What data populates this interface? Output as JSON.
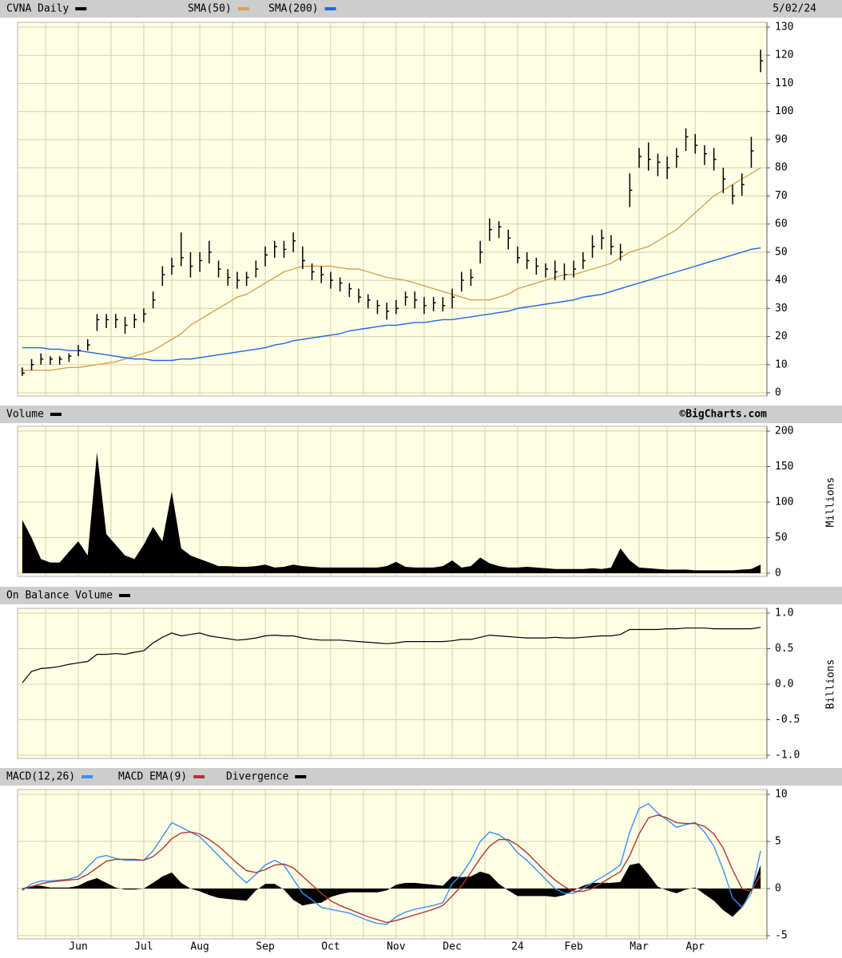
{
  "chart_data": [
    {
      "type": "ohlc",
      "name": "CVNA Daily",
      "color": "#000000",
      "date_label": "5/02/24",
      "high": [
        9,
        12,
        14,
        13,
        13,
        14,
        17,
        19,
        28,
        28,
        28,
        27,
        28,
        30,
        36,
        45,
        48,
        57,
        50,
        50,
        54,
        47,
        44,
        43,
        43,
        47,
        52,
        54,
        54,
        57,
        52,
        46,
        45,
        43,
        41,
        39,
        37,
        35,
        33,
        32,
        33,
        36,
        36,
        34,
        34,
        34,
        37,
        43,
        44,
        54,
        62,
        61,
        58,
        52,
        50,
        48,
        46,
        47,
        46,
        47,
        50,
        56,
        58,
        56,
        53,
        78,
        87,
        89,
        85,
        84,
        87,
        94,
        92,
        88,
        87,
        80,
        74,
        78,
        91,
        122
      ],
      "low": [
        6,
        8,
        10,
        10,
        10,
        11,
        13,
        15,
        22,
        23,
        23,
        21,
        23,
        25,
        30,
        38,
        42,
        45,
        41,
        43,
        46,
        41,
        38,
        37,
        38,
        41,
        45,
        48,
        48,
        50,
        44,
        40,
        39,
        37,
        36,
        34,
        32,
        30,
        28,
        26,
        28,
        31,
        30,
        28,
        29,
        29,
        30,
        36,
        38,
        46,
        54,
        55,
        51,
        46,
        44,
        42,
        41,
        40,
        40,
        41,
        44,
        48,
        51,
        49,
        47,
        66,
        80,
        79,
        77,
        76,
        80,
        86,
        85,
        81,
        79,
        71,
        67,
        70,
        80,
        114
      ],
      "close": [
        7,
        10,
        12,
        12,
        12,
        13,
        15,
        17,
        26,
        26,
        26,
        24,
        26,
        28,
        33,
        42,
        45,
        48,
        45,
        47,
        50,
        44,
        41,
        40,
        41,
        44,
        49,
        52,
        51,
        54,
        47,
        43,
        42,
        40,
        39,
        37,
        34,
        33,
        31,
        29,
        30,
        34,
        33,
        31,
        32,
        31,
        34,
        40,
        41,
        50,
        58,
        59,
        55,
        48,
        47,
        45,
        44,
        43,
        42,
        44,
        47,
        52,
        55,
        52,
        50,
        72,
        84,
        83,
        82,
        80,
        84,
        91,
        88,
        85,
        83,
        76,
        70,
        74,
        86,
        118
      ],
      "series": [
        {
          "name": "SMA(50)",
          "color": "#d9a150",
          "values": [
            8,
            8,
            8,
            8,
            8.5,
            9,
            9,
            9.5,
            10,
            10.5,
            11,
            12,
            13,
            14,
            15,
            17,
            19,
            21,
            24,
            26,
            28,
            30,
            32,
            34,
            35,
            37,
            39,
            41,
            43,
            44,
            45,
            45,
            45,
            45,
            44.5,
            44,
            44,
            43,
            42,
            41,
            40.5,
            40,
            39,
            38,
            37,
            36,
            35,
            34,
            33,
            33,
            33,
            34,
            35,
            37,
            38,
            39,
            40,
            41,
            42,
            42,
            43,
            44,
            45,
            46,
            48,
            50,
            51,
            52,
            54,
            56,
            58,
            61,
            64,
            67,
            70,
            72,
            74,
            76,
            78,
            80
          ]
        },
        {
          "name": "SMA(200)",
          "color": "#1e66e0",
          "values": [
            16,
            16,
            16,
            15.5,
            15.5,
            15,
            15,
            14.5,
            14,
            13.5,
            13,
            12.5,
            12,
            12,
            11.5,
            11.5,
            11.5,
            12,
            12,
            12.5,
            13,
            13.5,
            14,
            14.5,
            15,
            15.5,
            16,
            17,
            17.5,
            18.5,
            19,
            19.5,
            20,
            20.5,
            21,
            22,
            22.5,
            23,
            23.5,
            24,
            24,
            24.5,
            25,
            25,
            25.5,
            26,
            26,
            26.5,
            27,
            27.5,
            28,
            28.5,
            29,
            30,
            30.5,
            31,
            31.5,
            32,
            32.5,
            33,
            34,
            34.5,
            35,
            36,
            37,
            38,
            39,
            40,
            41,
            42,
            43,
            44,
            45,
            46,
            47,
            48,
            49,
            50,
            51,
            51.5
          ]
        }
      ],
      "ylim": [
        0,
        130
      ],
      "yticks": [
        0,
        10,
        20,
        30,
        40,
        50,
        60,
        70,
        80,
        90,
        100,
        110,
        120,
        130
      ],
      "grid": true
    },
    {
      "type": "area",
      "name": "Volume",
      "color": "#000000",
      "credit": "©BigCharts.com",
      "ylabel": "Millions",
      "values": [
        75,
        50,
        20,
        15,
        15,
        30,
        45,
        25,
        170,
        55,
        40,
        25,
        20,
        40,
        65,
        45,
        115,
        35,
        25,
        20,
        15,
        10,
        10,
        9,
        9,
        10,
        12,
        8,
        9,
        12,
        10,
        9,
        8,
        8,
        8,
        8,
        8,
        8,
        8,
        10,
        16,
        9,
        8,
        8,
        8,
        10,
        18,
        8,
        10,
        22,
        14,
        10,
        8,
        8,
        9,
        8,
        7,
        6,
        6,
        6,
        6,
        7,
        6,
        8,
        35,
        18,
        8,
        7,
        6,
        5,
        5,
        5,
        4,
        4,
        4,
        4,
        4,
        5,
        6,
        12
      ],
      "ylim": [
        0,
        200
      ],
      "yticks": [
        0,
        50,
        100,
        150,
        200
      ],
      "grid": true
    },
    {
      "type": "line",
      "name": "On Balance Volume",
      "color": "#000000",
      "ylabel": "Billions",
      "values": [
        0.02,
        0.18,
        0.22,
        0.23,
        0.25,
        0.28,
        0.3,
        0.32,
        0.42,
        0.42,
        0.43,
        0.42,
        0.45,
        0.47,
        0.58,
        0.66,
        0.72,
        0.68,
        0.7,
        0.72,
        0.68,
        0.66,
        0.64,
        0.62,
        0.63,
        0.65,
        0.68,
        0.69,
        0.68,
        0.68,
        0.65,
        0.63,
        0.62,
        0.62,
        0.62,
        0.61,
        0.6,
        0.59,
        0.58,
        0.57,
        0.58,
        0.6,
        0.6,
        0.6,
        0.6,
        0.6,
        0.61,
        0.63,
        0.63,
        0.66,
        0.69,
        0.68,
        0.67,
        0.66,
        0.65,
        0.65,
        0.65,
        0.66,
        0.65,
        0.65,
        0.66,
        0.67,
        0.68,
        0.68,
        0.7,
        0.77,
        0.77,
        0.77,
        0.77,
        0.78,
        0.78,
        0.79,
        0.79,
        0.79,
        0.78,
        0.78,
        0.78,
        0.78,
        0.78,
        0.8
      ],
      "ylim": [
        -1,
        1
      ],
      "yticks": [
        {
          "value": -1,
          "label": "-1.0"
        },
        {
          "value": -0.5,
          "label": "-0.5"
        },
        {
          "value": 0,
          "label": "0.0"
        },
        {
          "value": 0.5,
          "label": "0.5"
        },
        {
          "value": 1,
          "label": "1.0"
        }
      ],
      "grid": true
    },
    {
      "type": "macd",
      "categories": [
        null,
        null,
        null,
        null,
        null,
        null,
        "Jun",
        null,
        null,
        null,
        null,
        null,
        null,
        "Jul",
        null,
        null,
        null,
        null,
        null,
        "Aug",
        null,
        null,
        null,
        null,
        null,
        null,
        "Sep",
        null,
        null,
        null,
        null,
        null,
        null,
        "Oct",
        null,
        null,
        null,
        null,
        null,
        null,
        "Nov",
        null,
        null,
        null,
        null,
        null,
        "Dec",
        null,
        null,
        null,
        null,
        null,
        null,
        "24",
        null,
        null,
        null,
        null,
        null,
        "Feb",
        null,
        null,
        null,
        null,
        null,
        null,
        "Mar",
        null,
        null,
        null,
        null,
        null,
        "Apr",
        null,
        null,
        null,
        null,
        null,
        null,
        null
      ],
      "series": [
        {
          "name": "MACD(12,26)",
          "color": "#3a8ff0",
          "values": [
            -0.2,
            0.5,
            0.8,
            0.8,
            0.9,
            1,
            1.3,
            2.3,
            3.3,
            3.5,
            3.2,
            3,
            3,
            3,
            4,
            5.5,
            7,
            6.5,
            6,
            5.5,
            4.5,
            3.5,
            2.5,
            1.5,
            0.6,
            1.5,
            2.5,
            3,
            2.5,
            1,
            -0.5,
            -1.2,
            -2,
            -2.2,
            -2.4,
            -2.6,
            -3,
            -3.4,
            -3.7,
            -3.8,
            -3,
            -2.5,
            -2.2,
            -2,
            -1.8,
            -1.5,
            0.5,
            1.5,
            3,
            5,
            6,
            5.7,
            5,
            3.8,
            3,
            2,
            1,
            0,
            -0.5,
            -0.5,
            0,
            0.6,
            1.2,
            1.8,
            2.5,
            6,
            8.5,
            9,
            8,
            7.3,
            6.5,
            6.8,
            7,
            6,
            4.5,
            2,
            -1,
            -2,
            -0.5,
            4
          ]
        },
        {
          "name": "MACD EMA(9)",
          "color": "#b03535",
          "values": [
            0,
            0.2,
            0.5,
            0.7,
            0.8,
            0.9,
            1,
            1.5,
            2.2,
            2.9,
            3.1,
            3.1,
            3.1,
            3,
            3.4,
            4.2,
            5.3,
            5.9,
            6,
            5.8,
            5.2,
            4.5,
            3.6,
            2.7,
            1.9,
            1.7,
            2,
            2.5,
            2.6,
            2.2,
            1.3,
            0.4,
            -0.5,
            -1.3,
            -1.8,
            -2.2,
            -2.6,
            -3,
            -3.3,
            -3.6,
            -3.4,
            -3.1,
            -2.8,
            -2.5,
            -2.2,
            -1.8,
            -0.8,
            0.3,
            1.7,
            3.2,
            4.5,
            5.2,
            5.2,
            4.6,
            3.8,
            2.8,
            1.8,
            0.9,
            0.2,
            -0.3,
            -0.3,
            0,
            0.6,
            1.2,
            1.8,
            3.5,
            5.8,
            7.5,
            7.8,
            7.5,
            7,
            6.9,
            6.9,
            6.6,
            5.8,
            4.3,
            2,
            0,
            -0.3,
            1.5
          ]
        },
        {
          "name": "Divergence",
          "color": "#000000",
          "type": "area",
          "values": [
            -0.2,
            0.3,
            0.3,
            0.1,
            0.1,
            0.1,
            0.3,
            0.8,
            1.1,
            0.6,
            0.1,
            -0.1,
            -0.1,
            0,
            0.6,
            1.3,
            1.7,
            0.6,
            0,
            -0.3,
            -0.7,
            -1,
            -1.1,
            -1.2,
            -1.3,
            -0.2,
            0.5,
            0.5,
            -0.1,
            -1.2,
            -1.8,
            -1.6,
            -1.5,
            -0.9,
            -0.6,
            -0.4,
            -0.4,
            -0.4,
            -0.4,
            -0.2,
            0.4,
            0.6,
            0.6,
            0.5,
            0.4,
            0.3,
            1.3,
            1.2,
            1.3,
            1.8,
            1.5,
            0.5,
            -0.2,
            -0.8,
            -0.8,
            -0.8,
            -0.8,
            -0.9,
            -0.7,
            -0.2,
            0.3,
            0.6,
            0.6,
            0.6,
            0.7,
            2.5,
            2.7,
            1.5,
            0.2,
            -0.2,
            -0.5,
            -0.1,
            0.1,
            -0.6,
            -1.3,
            -2.3,
            -3,
            -2,
            -0.2,
            2.5
          ]
        }
      ],
      "ylim": [
        -5,
        10
      ],
      "yticks": [
        -5,
        0,
        5,
        10
      ],
      "grid": true
    }
  ]
}
